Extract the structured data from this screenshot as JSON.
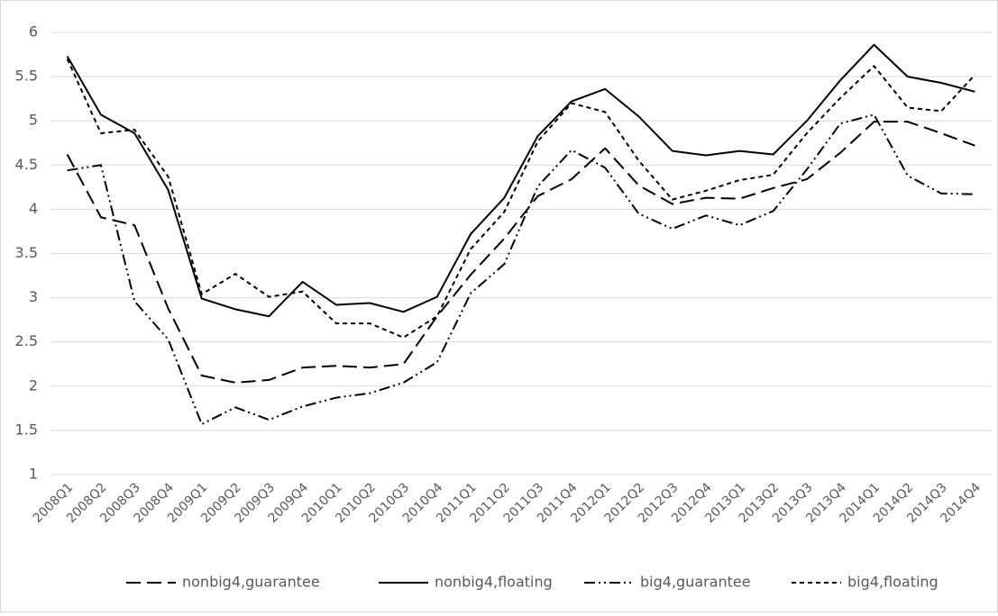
{
  "chart_data": {
    "type": "line",
    "categories": [
      "2008Q1",
      "2008Q2",
      "2008Q3",
      "2008Q4",
      "2009Q1",
      "2009Q2",
      "2009Q3",
      "2009Q4",
      "2010Q1",
      "2010Q2",
      "2010Q3",
      "2010Q4",
      "2011Q1",
      "2011Q2",
      "2011Q3",
      "2011Q4",
      "2012Q1",
      "2012Q2",
      "2012Q3",
      "2012Q4",
      "2013Q1",
      "2013Q2",
      "2013Q3",
      "2013Q4",
      "2014Q1",
      "2014Q2",
      "2014Q3",
      "2014Q4"
    ],
    "series": [
      {
        "name": "nonbig4,guarantee",
        "color": "#000000",
        "dash": "16,7",
        "values": [
          4.62,
          3.91,
          3.82,
          2.88,
          2.12,
          2.04,
          2.07,
          2.21,
          2.23,
          2.21,
          2.25,
          2.79,
          3.26,
          3.67,
          4.15,
          4.34,
          4.69,
          4.27,
          4.06,
          4.13,
          4.12,
          4.24,
          4.34,
          4.64,
          4.99,
          4.99,
          4.86,
          4.72
        ]
      },
      {
        "name": "nonbig4,floating",
        "color": "#000000",
        "dash": "none",
        "values": [
          5.73,
          5.07,
          4.86,
          4.22,
          2.99,
          2.87,
          2.79,
          3.18,
          2.92,
          2.94,
          2.84,
          3.01,
          3.72,
          4.13,
          4.83,
          5.22,
          5.36,
          5.05,
          4.66,
          4.61,
          4.66,
          4.62,
          5.0,
          5.46,
          5.86,
          5.5,
          5.43,
          5.33
        ]
      },
      {
        "name": "big4,guarantee",
        "color": "#000000",
        "dash": "12,4,2,4,2,4",
        "values": [
          4.44,
          4.5,
          2.96,
          2.53,
          1.57,
          1.76,
          1.62,
          1.77,
          1.87,
          1.92,
          2.04,
          2.27,
          3.05,
          3.38,
          4.26,
          4.67,
          4.47,
          3.95,
          3.78,
          3.93,
          3.82,
          3.98,
          4.45,
          4.97,
          5.07,
          4.38,
          4.18,
          4.17
        ]
      },
      {
        "name": "big4,floating",
        "color": "#000000",
        "dash": "5,4",
        "values": [
          5.7,
          4.86,
          4.9,
          4.37,
          3.04,
          3.27,
          3.01,
          3.07,
          2.71,
          2.71,
          2.55,
          2.79,
          3.55,
          3.97,
          4.77,
          5.2,
          5.1,
          4.55,
          4.11,
          4.21,
          4.33,
          4.39,
          4.86,
          5.26,
          5.62,
          5.15,
          5.11,
          5.52
        ]
      }
    ],
    "ylim": [
      1,
      6
    ],
    "yticks": [
      1,
      1.5,
      2,
      2.5,
      3,
      3.5,
      4,
      4.5,
      5,
      5.5,
      6
    ],
    "grid": true,
    "legend": "bottom"
  }
}
